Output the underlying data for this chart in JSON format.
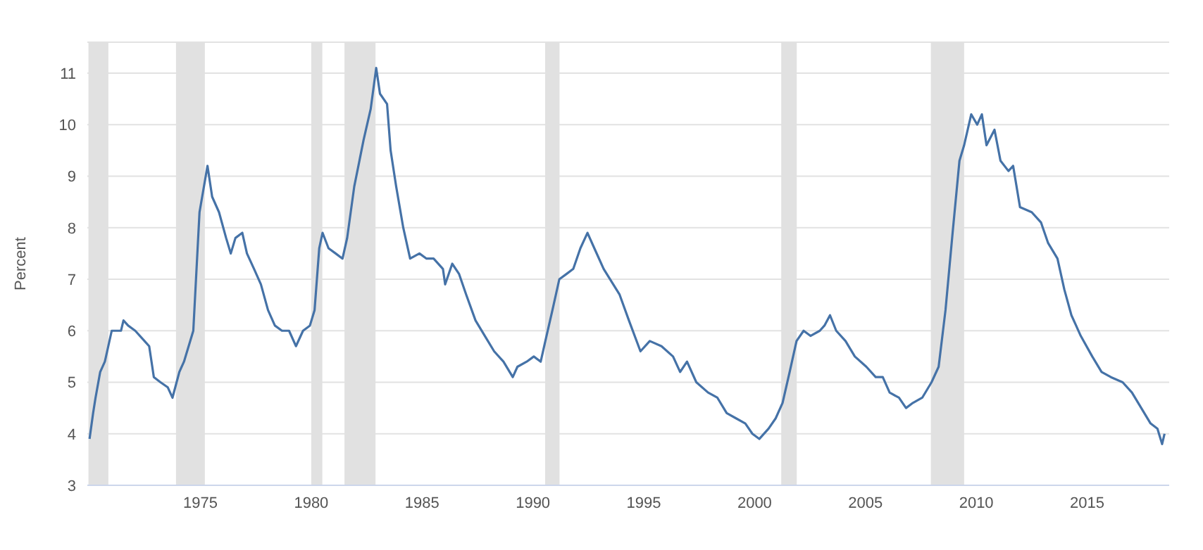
{
  "chart_data": {
    "type": "line",
    "ylabel": "Percent",
    "xlim": [
      1969.9,
      2018.7
    ],
    "xticks": [
      1975,
      1980,
      1985,
      1990,
      1995,
      2000,
      2005,
      2010,
      2015
    ],
    "ylim": [
      3,
      11.6
    ],
    "yticks": [
      3,
      4,
      5,
      6,
      7,
      8,
      9,
      10,
      11
    ],
    "grid": "y",
    "marker": "none",
    "line_style": "solid",
    "bands": [
      {
        "axis": "x",
        "from": 1969.95,
        "to": 1970.85,
        "color": "#e1e1e1"
      },
      {
        "axis": "x",
        "from": 1973.9,
        "to": 1975.2,
        "color": "#e1e1e1"
      },
      {
        "axis": "x",
        "from": 1980.0,
        "to": 1980.5,
        "color": "#e1e1e1"
      },
      {
        "axis": "x",
        "from": 1981.5,
        "to": 1982.9,
        "color": "#e1e1e1"
      },
      {
        "axis": "x",
        "from": 1990.55,
        "to": 1991.2,
        "color": "#e1e1e1"
      },
      {
        "axis": "x",
        "from": 2001.2,
        "to": 2001.9,
        "color": "#e1e1e1"
      },
      {
        "axis": "x",
        "from": 2007.95,
        "to": 2009.45,
        "color": "#e1e1e1"
      }
    ],
    "series": [
      {
        "color": "#4572a7",
        "x": [
          1970.0,
          1970.16,
          1970.27,
          1970.48,
          1970.69,
          1971.0,
          1971.42,
          1971.53,
          1971.74,
          1972.06,
          1972.48,
          1972.69,
          1972.9,
          1973.2,
          1973.53,
          1973.74,
          1974.05,
          1974.26,
          1974.47,
          1974.68,
          1974.96,
          1975.32,
          1975.53,
          1975.84,
          1976.16,
          1976.37,
          1976.58,
          1976.89,
          1977.1,
          1977.42,
          1977.73,
          1978.05,
          1978.36,
          1978.68,
          1979.0,
          1979.31,
          1979.63,
          1979.94,
          1980.15,
          1980.36,
          1980.51,
          1980.78,
          1981.1,
          1981.41,
          1981.62,
          1981.94,
          1982.36,
          1982.68,
          1982.93,
          1983.1,
          1983.42,
          1983.58,
          1983.83,
          1984.15,
          1984.46,
          1984.88,
          1985.2,
          1985.52,
          1985.94,
          1986.04,
          1986.36,
          1986.67,
          1986.99,
          1987.41,
          1987.83,
          1988.25,
          1988.67,
          1989.09,
          1989.3,
          1989.72,
          1990.04,
          1990.35,
          1990.56,
          1990.88,
          1991.19,
          1991.51,
          1991.82,
          1992.14,
          1992.46,
          1992.77,
          1993.19,
          1993.91,
          1994.33,
          1994.85,
          1995.27,
          1995.8,
          1996.32,
          1996.64,
          1996.95,
          1997.37,
          1997.9,
          1998.32,
          1998.74,
          1999.16,
          1999.58,
          1999.9,
          2000.21,
          2000.63,
          2000.95,
          2001.26,
          2001.58,
          2001.89,
          2002.21,
          2002.52,
          2002.94,
          2003.15,
          2003.4,
          2003.68,
          2004.1,
          2004.52,
          2005.04,
          2005.46,
          2005.78,
          2006.09,
          2006.51,
          2006.83,
          2007.14,
          2007.56,
          2007.98,
          2008.3,
          2008.61,
          2008.93,
          2009.24,
          2009.45,
          2009.77,
          2010.04,
          2010.25,
          2010.46,
          2010.82,
          2011.09,
          2011.45,
          2011.66,
          2011.97,
          2012.5,
          2012.92,
          2013.24,
          2013.66,
          2013.97,
          2014.29,
          2014.71,
          2015.23,
          2015.65,
          2016.07,
          2016.6,
          2017.02,
          2017.44,
          2017.86,
          2018.17,
          2018.38,
          2018.49
        ],
        "values": [
          3.9,
          4.4,
          4.7,
          5.2,
          5.4,
          6.0,
          6.0,
          6.2,
          6.1,
          6.0,
          5.8,
          5.7,
          5.1,
          5.0,
          4.9,
          4.7,
          5.2,
          5.4,
          5.7,
          6.0,
          8.3,
          9.2,
          8.6,
          8.3,
          7.8,
          7.5,
          7.8,
          7.9,
          7.5,
          7.2,
          6.9,
          6.4,
          6.1,
          6.0,
          6.0,
          5.7,
          6.0,
          6.1,
          6.4,
          7.6,
          7.9,
          7.6,
          7.5,
          7.4,
          7.8,
          8.8,
          9.7,
          10.3,
          11.1,
          10.6,
          10.4,
          9.5,
          8.8,
          8.0,
          7.4,
          7.5,
          7.4,
          7.4,
          7.2,
          6.9,
          7.3,
          7.1,
          6.7,
          6.2,
          5.9,
          5.6,
          5.4,
          5.1,
          5.3,
          5.4,
          5.5,
          5.4,
          5.8,
          6.4,
          7.0,
          7.1,
          7.2,
          7.6,
          7.9,
          7.6,
          7.2,
          6.7,
          6.2,
          5.6,
          5.8,
          5.7,
          5.5,
          5.2,
          5.4,
          5.0,
          4.8,
          4.7,
          4.4,
          4.3,
          4.2,
          4.0,
          3.9,
          4.1,
          4.3,
          4.6,
          5.2,
          5.8,
          6.0,
          5.9,
          6.0,
          6.1,
          6.3,
          6.0,
          5.8,
          5.5,
          5.3,
          5.1,
          5.1,
          4.8,
          4.7,
          4.5,
          4.6,
          4.7,
          5.0,
          5.3,
          6.4,
          7.9,
          9.3,
          9.6,
          10.2,
          10.0,
          10.2,
          9.6,
          9.9,
          9.3,
          9.1,
          9.2,
          8.4,
          8.3,
          8.1,
          7.7,
          7.4,
          6.8,
          6.3,
          5.9,
          5.5,
          5.2,
          5.1,
          5.0,
          4.8,
          4.5,
          4.2,
          4.1,
          3.8,
          4.0
        ]
      }
    ]
  }
}
